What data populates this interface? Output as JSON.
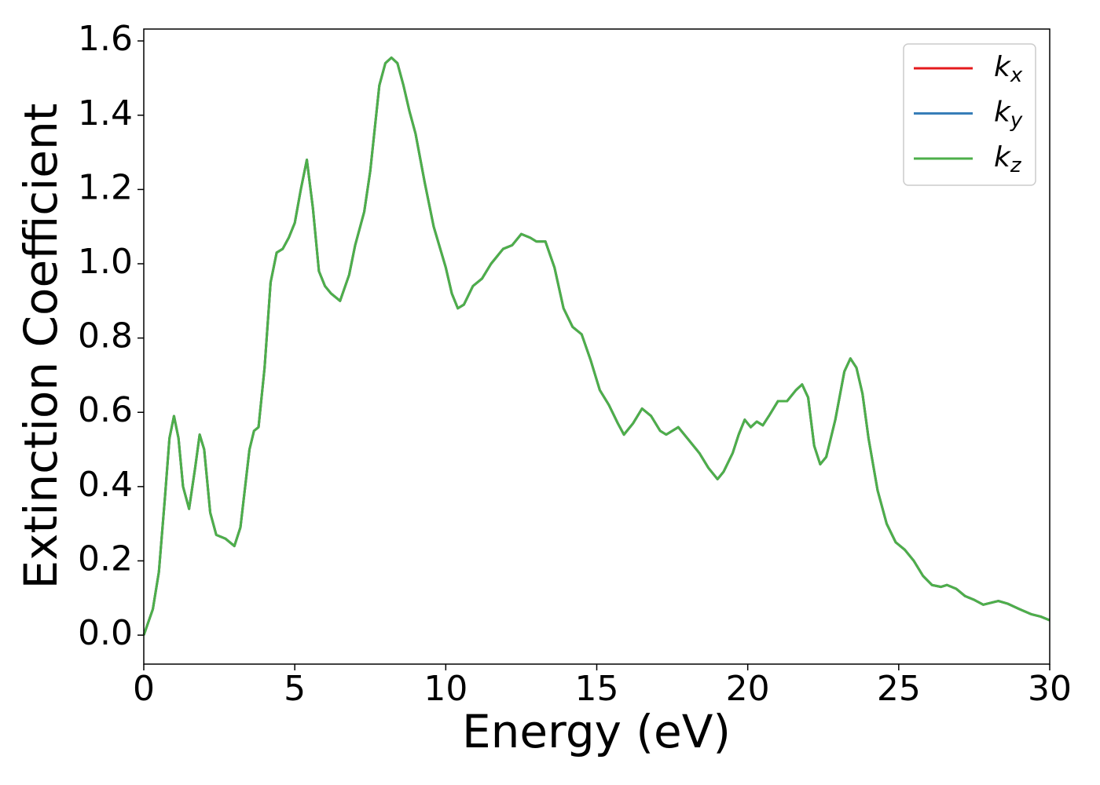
{
  "chart_data": {
    "type": "line",
    "xlabel": "Energy (eV)",
    "ylabel": "Extinction Coefficient",
    "x": [
      0,
      0.3,
      0.5,
      0.7,
      0.85,
      1.0,
      1.15,
      1.3,
      1.5,
      1.7,
      1.85,
      2.0,
      2.2,
      2.4,
      2.7,
      3.0,
      3.2,
      3.5,
      3.65,
      3.8,
      4.0,
      4.2,
      4.4,
      4.6,
      4.8,
      5.0,
      5.2,
      5.4,
      5.6,
      5.8,
      6.0,
      6.2,
      6.5,
      6.8,
      7.0,
      7.3,
      7.5,
      7.8,
      8.0,
      8.2,
      8.4,
      8.6,
      8.8,
      9.0,
      9.3,
      9.6,
      10.0,
      10.2,
      10.4,
      10.6,
      10.9,
      11.2,
      11.5,
      11.9,
      12.2,
      12.5,
      12.8,
      13.0,
      13.3,
      13.6,
      13.9,
      14.2,
      14.5,
      14.8,
      15.1,
      15.4,
      15.7,
      15.9,
      16.2,
      16.5,
      16.8,
      17.1,
      17.3,
      17.7,
      18.0,
      18.4,
      18.7,
      19.0,
      19.2,
      19.5,
      19.7,
      19.9,
      20.1,
      20.3,
      20.5,
      20.7,
      21.0,
      21.3,
      21.6,
      21.8,
      22.0,
      22.2,
      22.4,
      22.6,
      22.9,
      23.2,
      23.4,
      23.6,
      23.8,
      24.0,
      24.3,
      24.6,
      24.9,
      25.2,
      25.5,
      25.8,
      26.1,
      26.4,
      26.6,
      26.9,
      27.2,
      27.5,
      27.8,
      28.1,
      28.3,
      28.6,
      29.0,
      29.4,
      29.7,
      30.0
    ],
    "series": [
      {
        "name": "k_x",
        "color": "#e41a1c",
        "values": [
          0.0,
          0.07,
          0.17,
          0.37,
          0.53,
          0.59,
          0.53,
          0.4,
          0.34,
          0.45,
          0.54,
          0.5,
          0.33,
          0.27,
          0.26,
          0.24,
          0.29,
          0.5,
          0.55,
          0.56,
          0.72,
          0.95,
          1.03,
          1.04,
          1.07,
          1.11,
          1.2,
          1.28,
          1.15,
          0.98,
          0.94,
          0.92,
          0.9,
          0.97,
          1.05,
          1.14,
          1.25,
          1.48,
          1.54,
          1.555,
          1.54,
          1.48,
          1.41,
          1.35,
          1.22,
          1.1,
          0.99,
          0.92,
          0.88,
          0.89,
          0.94,
          0.96,
          1.0,
          1.04,
          1.05,
          1.08,
          1.07,
          1.06,
          1.06,
          0.99,
          0.88,
          0.83,
          0.81,
          0.74,
          0.66,
          0.62,
          0.57,
          0.54,
          0.57,
          0.61,
          0.59,
          0.55,
          0.54,
          0.56,
          0.53,
          0.49,
          0.45,
          0.42,
          0.44,
          0.49,
          0.54,
          0.58,
          0.56,
          0.575,
          0.565,
          0.59,
          0.63,
          0.63,
          0.66,
          0.675,
          0.64,
          0.51,
          0.46,
          0.48,
          0.58,
          0.71,
          0.745,
          0.72,
          0.65,
          0.53,
          0.39,
          0.3,
          0.25,
          0.23,
          0.2,
          0.16,
          0.135,
          0.13,
          0.135,
          0.125,
          0.105,
          0.095,
          0.082,
          0.088,
          0.092,
          0.085,
          0.07,
          0.056,
          0.05,
          0.04
        ]
      },
      {
        "name": "k_y",
        "color": "#377eb8",
        "values": [
          0.0,
          0.07,
          0.17,
          0.37,
          0.53,
          0.59,
          0.53,
          0.4,
          0.34,
          0.45,
          0.54,
          0.5,
          0.33,
          0.27,
          0.26,
          0.24,
          0.29,
          0.5,
          0.55,
          0.56,
          0.72,
          0.95,
          1.03,
          1.04,
          1.07,
          1.11,
          1.2,
          1.28,
          1.15,
          0.98,
          0.94,
          0.92,
          0.9,
          0.97,
          1.05,
          1.14,
          1.25,
          1.48,
          1.54,
          1.555,
          1.54,
          1.48,
          1.41,
          1.35,
          1.22,
          1.1,
          0.99,
          0.92,
          0.88,
          0.89,
          0.94,
          0.96,
          1.0,
          1.04,
          1.05,
          1.08,
          1.07,
          1.06,
          1.06,
          0.99,
          0.88,
          0.83,
          0.81,
          0.74,
          0.66,
          0.62,
          0.57,
          0.54,
          0.57,
          0.61,
          0.59,
          0.55,
          0.54,
          0.56,
          0.53,
          0.49,
          0.45,
          0.42,
          0.44,
          0.49,
          0.54,
          0.58,
          0.56,
          0.575,
          0.565,
          0.59,
          0.63,
          0.63,
          0.66,
          0.675,
          0.64,
          0.51,
          0.46,
          0.48,
          0.58,
          0.71,
          0.745,
          0.72,
          0.65,
          0.53,
          0.39,
          0.3,
          0.25,
          0.23,
          0.2,
          0.16,
          0.135,
          0.13,
          0.135,
          0.125,
          0.105,
          0.095,
          0.082,
          0.088,
          0.092,
          0.085,
          0.07,
          0.056,
          0.05,
          0.04
        ]
      },
      {
        "name": "k_z",
        "color": "#4daf4a",
        "values": [
          0.0,
          0.07,
          0.17,
          0.37,
          0.53,
          0.59,
          0.53,
          0.4,
          0.34,
          0.45,
          0.54,
          0.5,
          0.33,
          0.27,
          0.26,
          0.24,
          0.29,
          0.5,
          0.55,
          0.56,
          0.72,
          0.95,
          1.03,
          1.04,
          1.07,
          1.11,
          1.2,
          1.28,
          1.15,
          0.98,
          0.94,
          0.92,
          0.9,
          0.97,
          1.05,
          1.14,
          1.25,
          1.48,
          1.54,
          1.555,
          1.54,
          1.48,
          1.41,
          1.35,
          1.22,
          1.1,
          0.99,
          0.92,
          0.88,
          0.89,
          0.94,
          0.96,
          1.0,
          1.04,
          1.05,
          1.08,
          1.07,
          1.06,
          1.06,
          0.99,
          0.88,
          0.83,
          0.81,
          0.74,
          0.66,
          0.62,
          0.57,
          0.54,
          0.57,
          0.61,
          0.59,
          0.55,
          0.54,
          0.56,
          0.53,
          0.49,
          0.45,
          0.42,
          0.44,
          0.49,
          0.54,
          0.58,
          0.56,
          0.575,
          0.565,
          0.59,
          0.63,
          0.63,
          0.66,
          0.675,
          0.64,
          0.51,
          0.46,
          0.48,
          0.58,
          0.71,
          0.745,
          0.72,
          0.65,
          0.53,
          0.39,
          0.3,
          0.25,
          0.23,
          0.2,
          0.16,
          0.135,
          0.13,
          0.135,
          0.125,
          0.105,
          0.095,
          0.082,
          0.088,
          0.092,
          0.085,
          0.07,
          0.056,
          0.05,
          0.04
        ]
      }
    ],
    "xlim": [
      0,
      30
    ],
    "xticks": [
      0,
      5,
      10,
      15,
      20,
      25,
      30
    ],
    "ylim": [
      -0.078,
      1.632
    ],
    "yticks": [
      {
        "value": 0,
        "label": "0.0"
      },
      0.2,
      0.4,
      0.6,
      0.8,
      {
        "value": 1,
        "label": "1.0"
      },
      1.2,
      1.4,
      1.6
    ],
    "grid": false,
    "legend": "upper right"
  }
}
